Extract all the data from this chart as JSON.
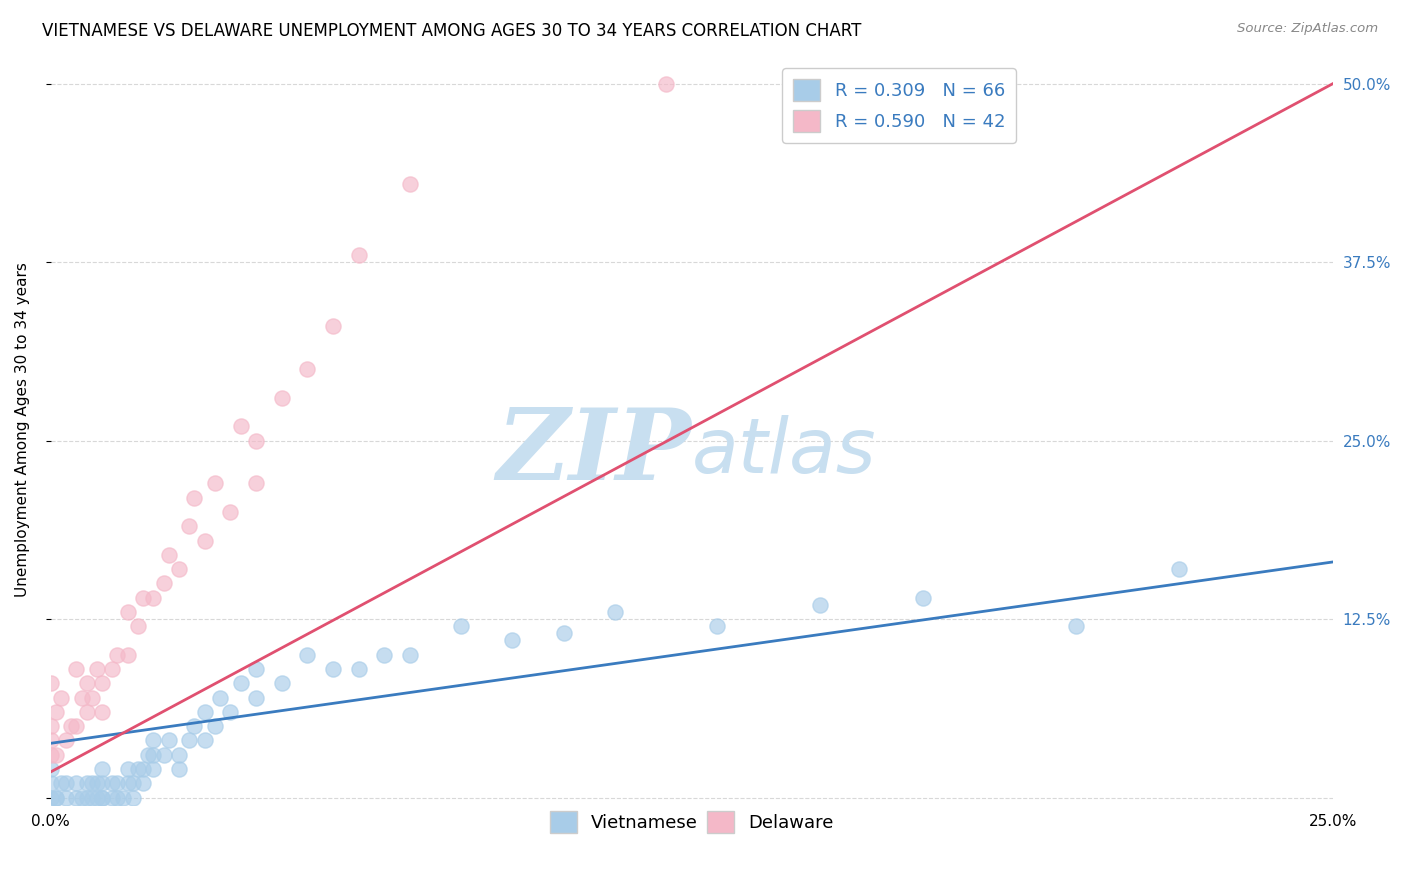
{
  "title": "VIETNAMESE VS DELAWARE UNEMPLOYMENT AMONG AGES 30 TO 34 YEARS CORRELATION CHART",
  "source": "Source: ZipAtlas.com",
  "ylabel": "Unemployment Among Ages 30 to 34 years",
  "xlim": [
    0.0,
    0.25
  ],
  "ylim": [
    -0.005,
    0.52
  ],
  "xticks": [
    0.0,
    0.05,
    0.1,
    0.15,
    0.2,
    0.25
  ],
  "yticks": [
    0.0,
    0.125,
    0.25,
    0.375,
    0.5
  ],
  "xticklabels": [
    "0.0%",
    "",
    "",
    "",
    "",
    "25.0%"
  ],
  "yticklabels_right": [
    "",
    "12.5%",
    "25.0%",
    "37.5%",
    "50.0%"
  ],
  "legend_r_blue": "R = 0.309",
  "legend_n_blue": "N = 66",
  "legend_r_pink": "R = 0.590",
  "legend_n_pink": "N = 42",
  "blue_color": "#a8cce8",
  "pink_color": "#f4b8c8",
  "blue_line_color": "#3a7bbf",
  "pink_line_color": "#e05070",
  "watermark_zip": "ZIP",
  "watermark_atlas": "atlas",
  "watermark_color": "#c8dff0",
  "blue_scatter_x": [
    0.0,
    0.0,
    0.0,
    0.001,
    0.001,
    0.002,
    0.003,
    0.003,
    0.005,
    0.005,
    0.006,
    0.007,
    0.007,
    0.008,
    0.008,
    0.009,
    0.009,
    0.01,
    0.01,
    0.01,
    0.01,
    0.012,
    0.012,
    0.013,
    0.013,
    0.014,
    0.015,
    0.015,
    0.016,
    0.016,
    0.017,
    0.018,
    0.018,
    0.019,
    0.02,
    0.02,
    0.02,
    0.022,
    0.023,
    0.025,
    0.025,
    0.027,
    0.028,
    0.03,
    0.03,
    0.032,
    0.033,
    0.035,
    0.037,
    0.04,
    0.04,
    0.045,
    0.05,
    0.055,
    0.06,
    0.065,
    0.07,
    0.08,
    0.09,
    0.1,
    0.11,
    0.13,
    0.15,
    0.17,
    0.2,
    0.22
  ],
  "blue_scatter_y": [
    0.0,
    0.01,
    0.02,
    0.0,
    0.0,
    0.01,
    0.0,
    0.01,
    0.0,
    0.01,
    0.0,
    0.0,
    0.01,
    0.0,
    0.01,
    0.0,
    0.01,
    0.0,
    0.0,
    0.01,
    0.02,
    0.0,
    0.01,
    0.0,
    0.01,
    0.0,
    0.01,
    0.02,
    0.0,
    0.01,
    0.02,
    0.01,
    0.02,
    0.03,
    0.02,
    0.03,
    0.04,
    0.03,
    0.04,
    0.02,
    0.03,
    0.04,
    0.05,
    0.04,
    0.06,
    0.05,
    0.07,
    0.06,
    0.08,
    0.07,
    0.09,
    0.08,
    0.1,
    0.09,
    0.09,
    0.1,
    0.1,
    0.12,
    0.11,
    0.115,
    0.13,
    0.12,
    0.135,
    0.14,
    0.12,
    0.16
  ],
  "pink_scatter_x": [
    0.0,
    0.0,
    0.0,
    0.0,
    0.001,
    0.001,
    0.002,
    0.003,
    0.004,
    0.005,
    0.005,
    0.006,
    0.007,
    0.007,
    0.008,
    0.009,
    0.01,
    0.01,
    0.012,
    0.013,
    0.015,
    0.015,
    0.017,
    0.018,
    0.02,
    0.022,
    0.023,
    0.025,
    0.027,
    0.028,
    0.03,
    0.032,
    0.035,
    0.037,
    0.04,
    0.04,
    0.045,
    0.05,
    0.055,
    0.06,
    0.07,
    0.12
  ],
  "pink_scatter_y": [
    0.03,
    0.04,
    0.05,
    0.08,
    0.03,
    0.06,
    0.07,
    0.04,
    0.05,
    0.05,
    0.09,
    0.07,
    0.06,
    0.08,
    0.07,
    0.09,
    0.06,
    0.08,
    0.09,
    0.1,
    0.1,
    0.13,
    0.12,
    0.14,
    0.14,
    0.15,
    0.17,
    0.16,
    0.19,
    0.21,
    0.18,
    0.22,
    0.2,
    0.26,
    0.22,
    0.25,
    0.28,
    0.3,
    0.33,
    0.38,
    0.43,
    0.5
  ],
  "blue_line_x": [
    0.0,
    0.25
  ],
  "blue_line_y": [
    0.038,
    0.165
  ],
  "pink_line_x": [
    0.0,
    0.25
  ],
  "pink_line_y": [
    0.018,
    0.5
  ],
  "background_color": "#ffffff",
  "grid_color": "#d8d8d8",
  "title_fontsize": 12,
  "axis_label_fontsize": 11,
  "tick_fontsize": 11,
  "legend_fontsize": 13
}
